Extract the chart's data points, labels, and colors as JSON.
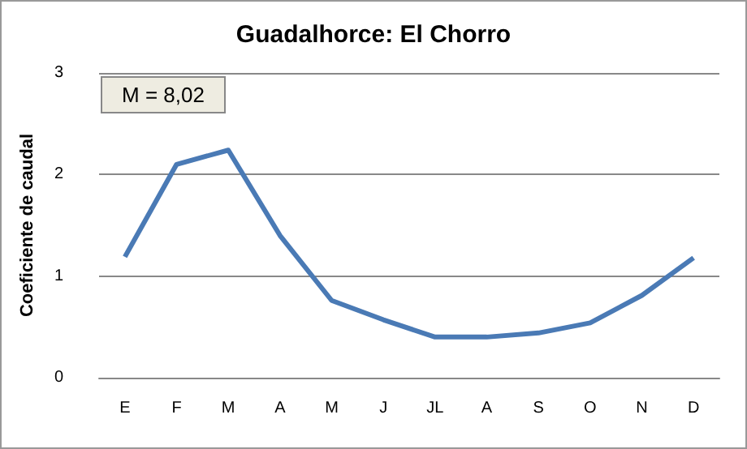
{
  "chart_data": {
    "type": "line",
    "title": "Guadalhorce: El Chorro",
    "ylabel": "Coeficiente de caudal",
    "categories": [
      "E",
      "F",
      "M",
      "A",
      "M",
      "J",
      "JL",
      "A",
      "S",
      "O",
      "N",
      "D"
    ],
    "series": [
      {
        "color": "#4a7ab5",
        "values": [
          1.19,
          2.1,
          2.24,
          1.4,
          0.76,
          0.57,
          0.4,
          0.4,
          0.44,
          0.54,
          0.81,
          1.18
        ]
      }
    ],
    "ylim": [
      0,
      3
    ],
    "yticks": [
      0,
      1,
      2,
      3
    ],
    "grid": "y",
    "marker": "none",
    "annotations": [
      "M = 8,02"
    ]
  }
}
